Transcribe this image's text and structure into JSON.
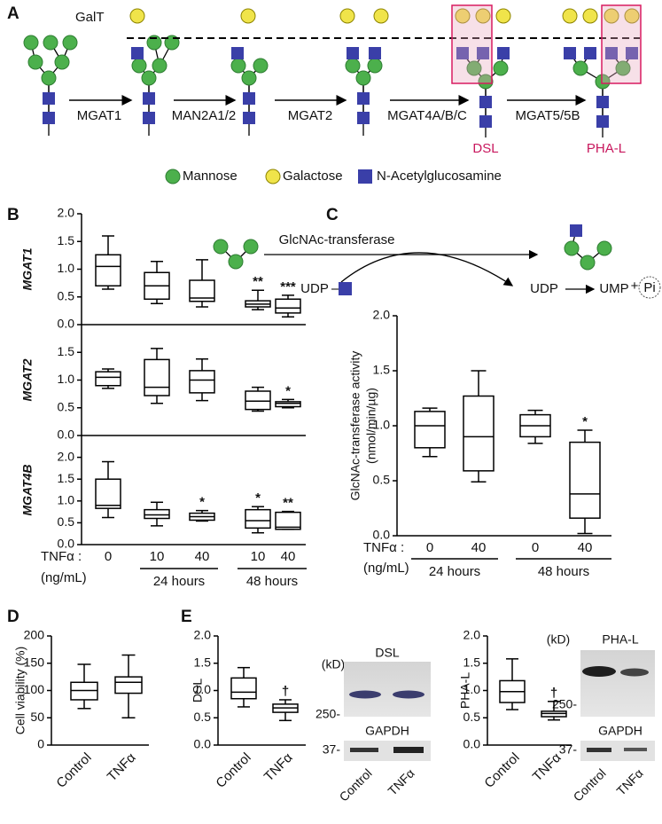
{
  "panel_labels": [
    "A",
    "B",
    "C",
    "D",
    "E"
  ],
  "pathway": {
    "galt": "GalT",
    "enzymes": [
      "MGAT1",
      "MAN2A1/2",
      "MGAT2",
      "MGAT4A/B/C",
      "MGAT5/5B"
    ],
    "lectins": [
      "DSL",
      "PHA-L"
    ],
    "legend": [
      "Mannose",
      "Galactose",
      "N-Acetylglucosamine"
    ]
  },
  "reaction": {
    "enzyme": "GlcNAc-transferase",
    "donor": "UDP",
    "released": "UDP",
    "product": "UMP",
    "plus": "+",
    "phosphate": "Pi"
  },
  "blots": [
    {
      "unit": "(kD)",
      "lectin": "DSL",
      "marker_high": "250-",
      "loading": "GAPDH",
      "marker_low": "37-",
      "lanes": [
        "Control",
        "TNFα"
      ]
    },
    {
      "unit": "(kD)",
      "lectin": "PHA-L",
      "marker_high": "250-",
      "loading": "GAPDH",
      "marker_low": "37-",
      "lanes": [
        "Control",
        "TNFα"
      ]
    }
  ],
  "chart_data": [
    {
      "type": "box",
      "ylabel": "MGAT1",
      "ylim": [
        0,
        2
      ],
      "yticks": [
        {
          "value": 0,
          "label": "0.0"
        },
        {
          "value": 0.5,
          "label": "0.5"
        },
        {
          "value": 1,
          "label": "1.0"
        },
        {
          "value": 1.5,
          "label": "1.5"
        },
        {
          "value": 2,
          "label": "2.0"
        }
      ],
      "boxes": [
        {
          "min": 0.64,
          "q1": 0.7,
          "median": 1.05,
          "q3": 1.26,
          "max": 1.6
        },
        {
          "min": 0.38,
          "q1": 0.46,
          "median": 0.7,
          "q3": 0.94,
          "max": 1.14
        },
        {
          "min": 0.32,
          "q1": 0.42,
          "median": 0.48,
          "q3": 0.8,
          "max": 1.17
        },
        {
          "min": 0.27,
          "q1": 0.32,
          "median": 0.37,
          "q3": 0.43,
          "max": 0.62
        },
        {
          "min": 0.14,
          "q1": 0.21,
          "median": 0.3,
          "q3": 0.46,
          "max": 0.53
        }
      ],
      "annotations": [
        null,
        null,
        null,
        "**",
        "***"
      ]
    },
    {
      "type": "box",
      "ylabel": "MGAT2",
      "ylim": [
        0,
        2
      ],
      "yticks": [
        {
          "value": 0,
          "label": "0.0"
        },
        {
          "value": 0.5,
          "label": "0.5"
        },
        {
          "value": 1,
          "label": "1.0"
        },
        {
          "value": 1.5,
          "label": "1.5"
        }
      ],
      "boxes": [
        {
          "min": 0.85,
          "q1": 0.9,
          "median": 1.05,
          "q3": 1.15,
          "max": 1.2
        },
        {
          "min": 0.58,
          "q1": 0.72,
          "median": 0.87,
          "q3": 1.37,
          "max": 1.57
        },
        {
          "min": 0.63,
          "q1": 0.77,
          "median": 1.0,
          "q3": 1.17,
          "max": 1.38
        },
        {
          "min": 0.44,
          "q1": 0.47,
          "median": 0.62,
          "q3": 0.8,
          "max": 0.87
        },
        {
          "min": 0.5,
          "q1": 0.52,
          "median": 0.58,
          "q3": 0.61,
          "max": 0.65
        }
      ],
      "annotations": [
        null,
        null,
        null,
        null,
        "*"
      ]
    },
    {
      "type": "box",
      "ylabel": "MGAT4B",
      "ylim": [
        0,
        2.5
      ],
      "yticks": [
        {
          "value": 0,
          "label": "0.0"
        },
        {
          "value": 0.5,
          "label": "0.5"
        },
        {
          "value": 1,
          "label": "1.0"
        },
        {
          "value": 1.5,
          "label": "1.5"
        },
        {
          "value": 2,
          "label": "2.0"
        }
      ],
      "categories": [
        "0",
        "10",
        "40",
        "10",
        "40"
      ],
      "x_prefix": [
        "TNFα :",
        "(ng/mL)"
      ],
      "groups": [
        "24 hours",
        "48 hours"
      ],
      "boxes": [
        {
          "min": 0.62,
          "q1": 0.83,
          "median": 0.9,
          "q3": 1.5,
          "max": 1.9
        },
        {
          "min": 0.43,
          "q1": 0.6,
          "median": 0.68,
          "q3": 0.8,
          "max": 0.97
        },
        {
          "min": 0.54,
          "q1": 0.56,
          "median": 0.64,
          "q3": 0.72,
          "max": 0.78
        },
        {
          "min": 0.27,
          "q1": 0.38,
          "median": 0.55,
          "q3": 0.8,
          "max": 0.87
        },
        {
          "min": 0.35,
          "q1": 0.35,
          "median": 0.4,
          "q3": 0.74,
          "max": 0.76
        }
      ],
      "annotations": [
        null,
        null,
        "*",
        "*",
        "**"
      ]
    },
    {
      "type": "box",
      "ylabel": [
        "GlcNAc-transferase activity",
        "(nmol/min/µg)"
      ],
      "ylim": [
        0,
        2
      ],
      "yticks": [
        {
          "value": 0,
          "label": "0.0"
        },
        {
          "value": 0.5,
          "label": "0.5"
        },
        {
          "value": 1,
          "label": "1.0"
        },
        {
          "value": 1.5,
          "label": "1.5"
        },
        {
          "value": 2,
          "label": "2.0"
        }
      ],
      "categories": [
        "0",
        "40",
        "0",
        "40"
      ],
      "x_prefix": [
        "TNFα :",
        "(ng/mL)"
      ],
      "groups": [
        "24 hours",
        "48 hours"
      ],
      "boxes": [
        {
          "min": 0.72,
          "q1": 0.8,
          "median": 1.0,
          "q3": 1.13,
          "max": 1.16
        },
        {
          "min": 0.49,
          "q1": 0.59,
          "median": 0.9,
          "q3": 1.27,
          "max": 1.5
        },
        {
          "min": 0.84,
          "q1": 0.9,
          "median": 1.0,
          "q3": 1.1,
          "max": 1.14
        },
        {
          "min": 0.02,
          "q1": 0.16,
          "median": 0.38,
          "q3": 0.85,
          "max": 0.96
        }
      ],
      "annotations": [
        null,
        null,
        null,
        "*"
      ]
    },
    {
      "type": "box",
      "ylabel": "Cell viability (%)",
      "ylim": [
        0,
        200
      ],
      "yticks": [
        0,
        50,
        100,
        150,
        200
      ],
      "categories": [
        "Control",
        "TNFα"
      ],
      "boxes": [
        {
          "min": 67,
          "q1": 83,
          "median": 100,
          "q3": 115,
          "max": 148
        },
        {
          "min": 50,
          "q1": 95,
          "median": 115,
          "q3": 125,
          "max": 165
        }
      ]
    },
    {
      "type": "box",
      "ylabel": "DSL",
      "ylim": [
        0,
        2
      ],
      "yticks": [
        {
          "value": 0,
          "label": "0.0"
        },
        {
          "value": 0.5,
          "label": "0.5"
        },
        {
          "value": 1,
          "label": "1.0"
        },
        {
          "value": 1.5,
          "label": "1.5"
        },
        {
          "value": 2,
          "label": "2.0"
        }
      ],
      "categories": [
        "Control",
        "TNFα"
      ],
      "boxes": [
        {
          "min": 0.7,
          "q1": 0.85,
          "median": 0.97,
          "q3": 1.23,
          "max": 1.42
        },
        {
          "min": 0.45,
          "q1": 0.6,
          "median": 0.68,
          "q3": 0.75,
          "max": 0.83
        }
      ],
      "annotations": [
        null,
        "†"
      ]
    },
    {
      "type": "box",
      "ylabel": "PHA-L",
      "ylim": [
        0,
        2
      ],
      "yticks": [
        {
          "value": 0,
          "label": "0.0"
        },
        {
          "value": 0.5,
          "label": "0.5"
        },
        {
          "value": 1,
          "label": "1.0"
        },
        {
          "value": 1.5,
          "label": "1.5"
        },
        {
          "value": 2,
          "label": "2.0"
        }
      ],
      "categories": [
        "Control",
        "TNFα"
      ],
      "boxes": [
        {
          "min": 0.65,
          "q1": 0.78,
          "median": 0.98,
          "q3": 1.18,
          "max": 1.58
        },
        {
          "min": 0.46,
          "q1": 0.52,
          "median": 0.58,
          "q3": 0.62,
          "max": 0.8
        }
      ],
      "annotations": [
        null,
        "†"
      ]
    }
  ]
}
